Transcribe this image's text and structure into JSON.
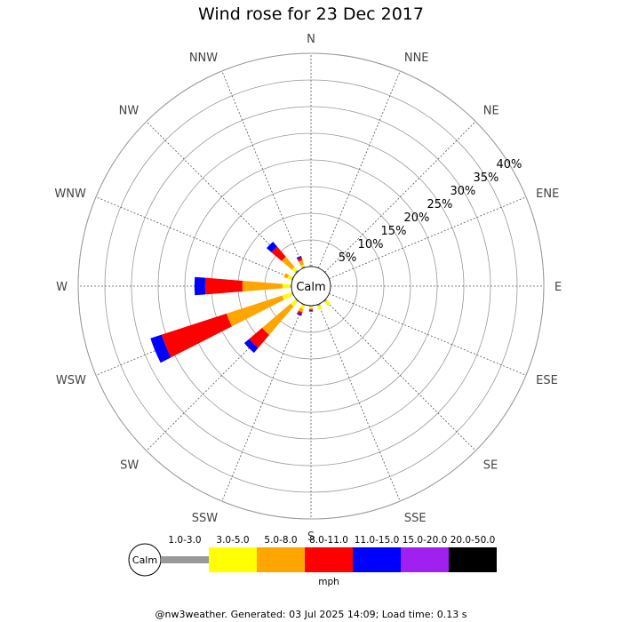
{
  "title": "Wind rose for 23 Dec 2017",
  "footer": "@nw3weather. Generated: 03 Jul 2025 14:09; Load time: 0.13 s",
  "colors": {
    "grid": "#999999",
    "text": "#000000",
    "direction_label": "#444444",
    "calm_bar": "#999999"
  },
  "chart_data": {
    "type": "polar-stacked-bar",
    "title": "Wind rose for 23 Dec 2017",
    "directions": [
      "N",
      "NNE",
      "NE",
      "ENE",
      "E",
      "ESE",
      "SE",
      "SSE",
      "S",
      "SSW",
      "SW",
      "WSW",
      "W",
      "WNW",
      "NW",
      "NNW"
    ],
    "radial_ticks": [
      "5%",
      "10%",
      "15%",
      "20%",
      "25%",
      "30%",
      "35%",
      "40%"
    ],
    "radial_tick_values": [
      5,
      10,
      15,
      20,
      25,
      30,
      35,
      40
    ],
    "rmax": 40,
    "calm_label": "Calm",
    "units": "mph",
    "legend": {
      "calm": "Calm",
      "bins": [
        "1.0-3.0",
        "3.0-5.0",
        "5.0-8.0",
        "8.0-11.0",
        "11.0-15.0",
        "15.0-20.0",
        "20.0-50.0"
      ],
      "colors": [
        "#999999",
        "#ffff00",
        "#ffa500",
        "#ff0000",
        "#0000ff",
        "#a020f0",
        "#000000"
      ]
    },
    "series": [
      {
        "label": "1.0-3.0",
        "color": "#999999",
        "values": [
          0.3,
          0,
          0,
          0,
          0,
          0,
          0.3,
          0.3,
          0.2,
          0.2,
          0.2,
          0.2,
          0.2,
          0.2,
          0.3,
          0.3
        ]
      },
      {
        "label": "3.0-5.0",
        "color": "#ffff00",
        "values": [
          0,
          0,
          0,
          0,
          0,
          0,
          0.9,
          0.7,
          0.3,
          0.7,
          1.2,
          1.8,
          1.5,
          0.8,
          0.8,
          0.3
        ]
      },
      {
        "label": "5.0-8.0",
        "color": "#ffa500",
        "values": [
          0,
          0,
          0,
          0,
          0,
          0,
          0,
          0,
          0.2,
          0.6,
          7.0,
          11.0,
          7.5,
          0.7,
          2.5,
          0.9
        ]
      },
      {
        "label": "8.0-11.0",
        "color": "#ff0000",
        "values": [
          0,
          0,
          0,
          0,
          0,
          0,
          0,
          0,
          0.2,
          0.4,
          3.2,
          12.8,
          7.0,
          0,
          2.5,
          0.5
        ]
      },
      {
        "label": "11.0-15.0",
        "color": "#0000ff",
        "values": [
          0,
          0,
          0,
          0,
          0,
          0,
          0,
          0,
          0.2,
          0.3,
          1.2,
          2.2,
          2.0,
          0,
          1.2,
          0.3
        ]
      }
    ]
  }
}
